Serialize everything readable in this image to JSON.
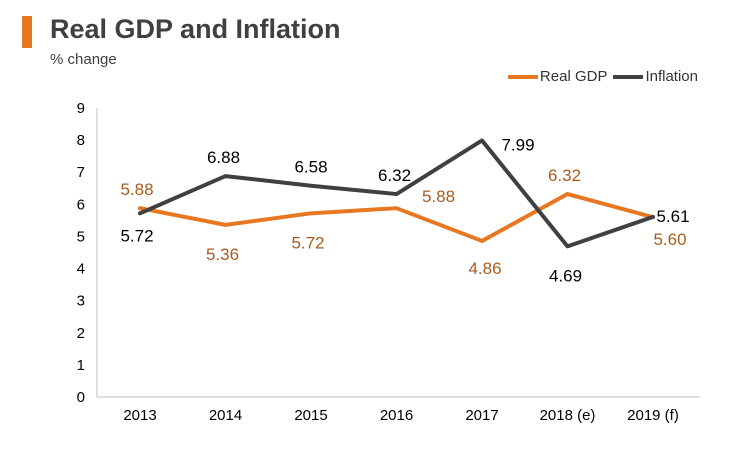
{
  "header": {
    "title": "Real GDP and Inflation",
    "subtitle": "% change"
  },
  "colors": {
    "accent": "#e87722",
    "gdp_line": "#e87722",
    "gdp_label": "#a85c1e",
    "inflation_line": "#404040",
    "inflation_label": "#000000"
  },
  "chart_data": {
    "type": "line",
    "categories": [
      "2013",
      "2014",
      "2015",
      "2016",
      "2017",
      "2018 (e)",
      "2019 (f)"
    ],
    "series": [
      {
        "name": "Real GDP",
        "values": [
          5.88,
          5.36,
          5.72,
          5.88,
          4.86,
          6.32,
          5.6
        ]
      },
      {
        "name": "Inflation",
        "values": [
          5.72,
          6.88,
          6.58,
          6.32,
          7.99,
          4.69,
          5.61
        ]
      }
    ],
    "ylim": [
      0,
      9
    ],
    "yticks": [
      0,
      1,
      2,
      3,
      4,
      5,
      6,
      7,
      8,
      9
    ],
    "grid": false,
    "legend": "top-right"
  }
}
